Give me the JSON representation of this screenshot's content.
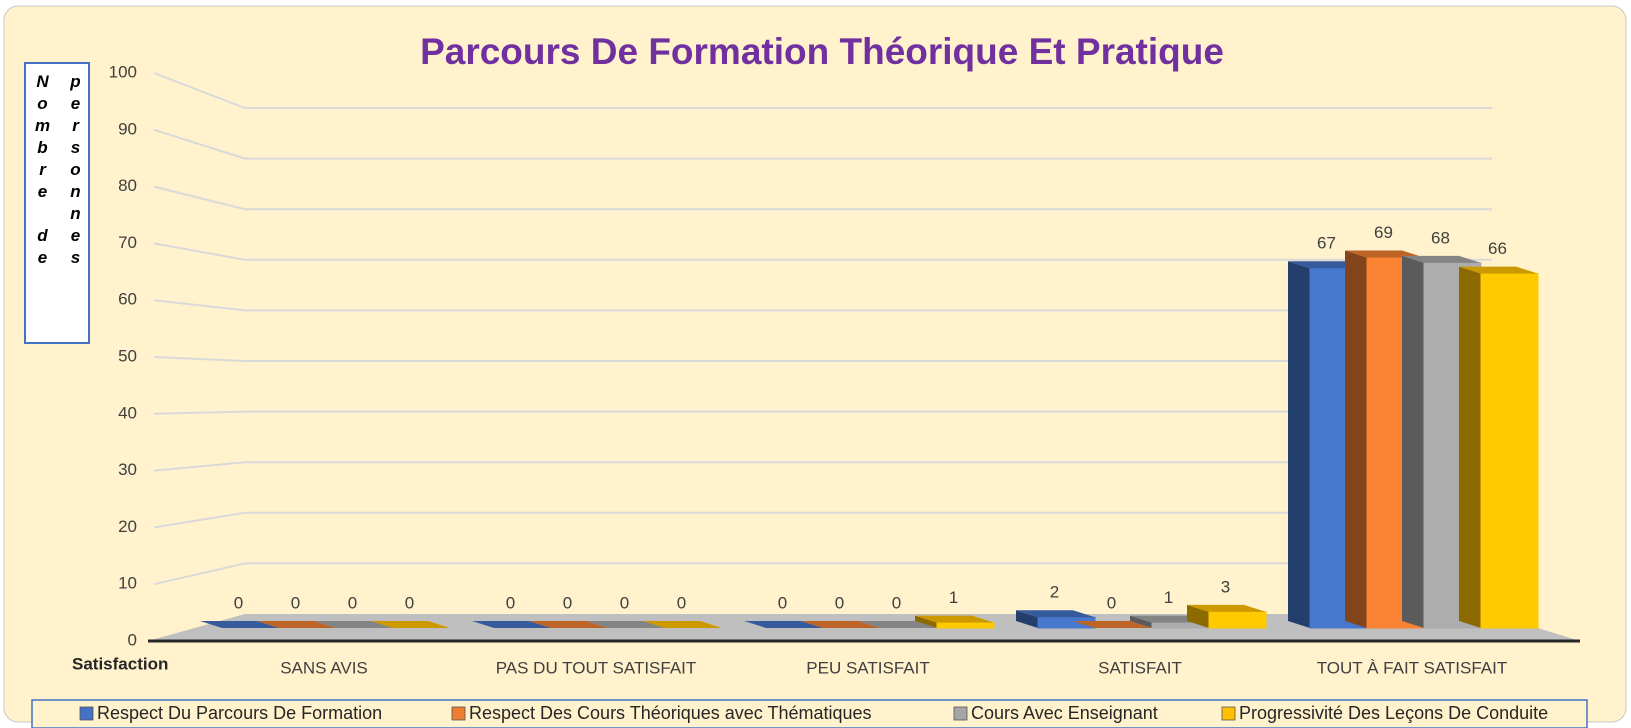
{
  "chart_data": {
    "type": "bar3d",
    "title": "Parcours De Formation Théorique Et Pratique",
    "y_label": "Nombre de personnes",
    "x_label": "Satisfaction",
    "categories": [
      "SANS AVIS",
      "PAS DU TOUT SATISFAIT",
      "PEU SATISFAIT",
      "SATISFAIT",
      "TOUT À FAIT SATISFAIT"
    ],
    "series": [
      {
        "name": "Respect Du Parcours De Formation",
        "color": "#4472c4",
        "values": [
          0,
          0,
          0,
          2,
          67
        ]
      },
      {
        "name": "Respect Des Cours Théoriques avec Thématiques",
        "color": "#ed7d31",
        "values": [
          0,
          0,
          0,
          0,
          69
        ]
      },
      {
        "name": "Cours Avec Enseignant",
        "color": "#a5a5a5",
        "values": [
          0,
          0,
          0,
          1,
          68
        ]
      },
      {
        "name": "Progressivité Des Leçons De Conduite",
        "color": "#ffc000",
        "values": [
          0,
          0,
          1,
          3,
          66
        ]
      }
    ],
    "ylim": [
      0,
      100
    ],
    "yticks": [
      0,
      10,
      20,
      30,
      40,
      50,
      60,
      70,
      80,
      90,
      100
    ],
    "grid": true,
    "legend": "bottom"
  }
}
